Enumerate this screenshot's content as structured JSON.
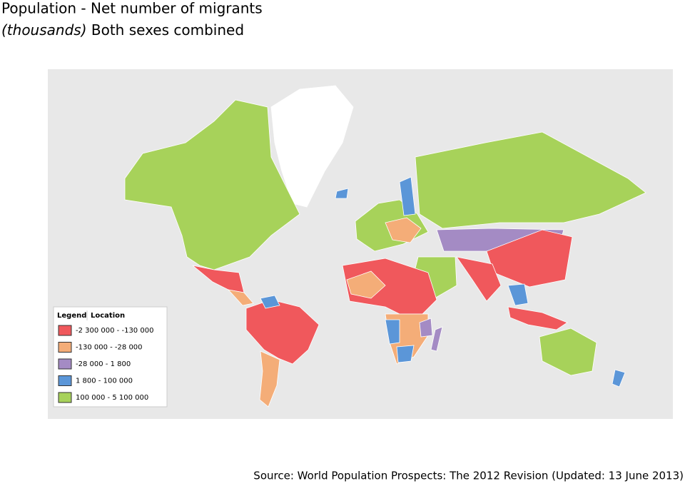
{
  "header": {
    "title": "Population - Net number of migrants",
    "subtitle_italic": "(thousands)",
    "subtitle": "Both sexes combined"
  },
  "legend": {
    "title": "Legend",
    "tab": "Location",
    "items": [
      {
        "label": "-2 300 000 - -130 000",
        "color": "#f0585c"
      },
      {
        "label": "-130 000 - -28 000",
        "color": "#f4ad78"
      },
      {
        "label": "-28 000 - 1 800",
        "color": "#a48bc4"
      },
      {
        "label": "1 800 - 100 000",
        "color": "#5b96d8"
      },
      {
        "label": "100 000 - 5 100 000",
        "color": "#a7d25a"
      }
    ]
  },
  "source": "Source: World Population Prospects: The 2012 Revision (Updated: 13 June 2013)"
}
